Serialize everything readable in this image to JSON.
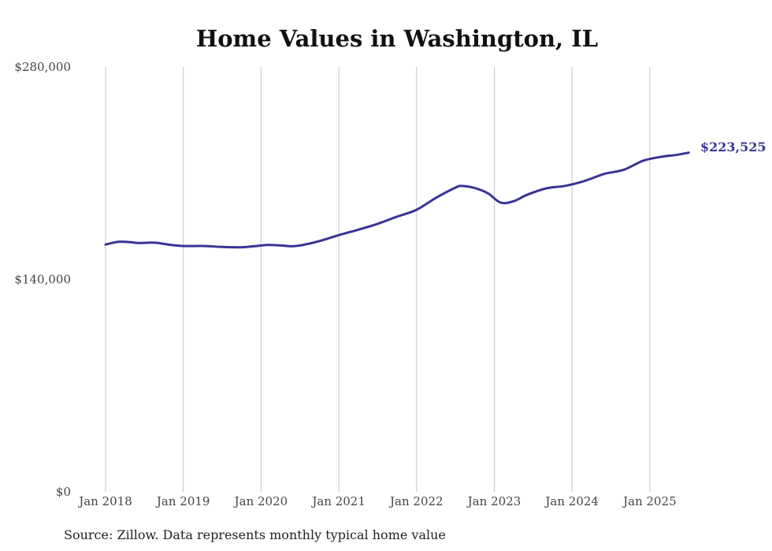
{
  "chart_data": {
    "type": "line",
    "title": "Home Values in Washington, IL",
    "source_note": "Source: Zillow. Data represents monthly typical home value",
    "ylim": [
      0,
      280000
    ],
    "y_ticks": [
      "$280,000",
      "$140,000",
      "$0"
    ],
    "y_tick_values": [
      280000,
      140000,
      0
    ],
    "x_ticks": [
      "Jan 2018",
      "Jan 2019",
      "Jan 2020",
      "Jan 2021",
      "Jan 2022",
      "Jan 2023",
      "Jan 2024",
      "Jan 2025"
    ],
    "x_tick_years": [
      2018,
      2019,
      2020,
      2021,
      2022,
      2023,
      2024,
      2025
    ],
    "xlim": [
      "2018-01",
      "2025-07"
    ],
    "grid": "vertical",
    "line_color": "#3a3495",
    "end_label": "$223,525",
    "series": [
      {
        "points": [
          [
            "2018-01",
            163000
          ],
          [
            "2018-03",
            164800
          ],
          [
            "2018-05",
            164500
          ],
          [
            "2018-06",
            164000
          ],
          [
            "2018-08",
            164300
          ],
          [
            "2018-09",
            164100
          ],
          [
            "2018-11",
            162800
          ],
          [
            "2019-01",
            162000
          ],
          [
            "2019-04",
            162100
          ],
          [
            "2019-07",
            161400
          ],
          [
            "2019-10",
            161200
          ],
          [
            "2019-12",
            161900
          ],
          [
            "2020-02",
            162700
          ],
          [
            "2020-04",
            162400
          ],
          [
            "2020-06",
            161900
          ],
          [
            "2020-08",
            163200
          ],
          [
            "2020-10",
            165300
          ],
          [
            "2021-01",
            169200
          ],
          [
            "2021-04",
            172800
          ],
          [
            "2021-07",
            176700
          ],
          [
            "2021-10",
            181400
          ],
          [
            "2022-01",
            185900
          ],
          [
            "2022-04",
            193800
          ],
          [
            "2022-07",
            200500
          ],
          [
            "2022-08",
            201600
          ],
          [
            "2022-10",
            200200
          ],
          [
            "2022-12",
            196800
          ],
          [
            "2023-02",
            190600
          ],
          [
            "2023-04",
            191600
          ],
          [
            "2023-06",
            195700
          ],
          [
            "2023-09",
            200000
          ],
          [
            "2023-12",
            201700
          ],
          [
            "2024-03",
            205000
          ],
          [
            "2024-06",
            209600
          ],
          [
            "2024-09",
            212300
          ],
          [
            "2024-12",
            218300
          ],
          [
            "2025-03",
            221000
          ],
          [
            "2025-05",
            222000
          ],
          [
            "2025-07",
            223525
          ]
        ]
      }
    ]
  }
}
